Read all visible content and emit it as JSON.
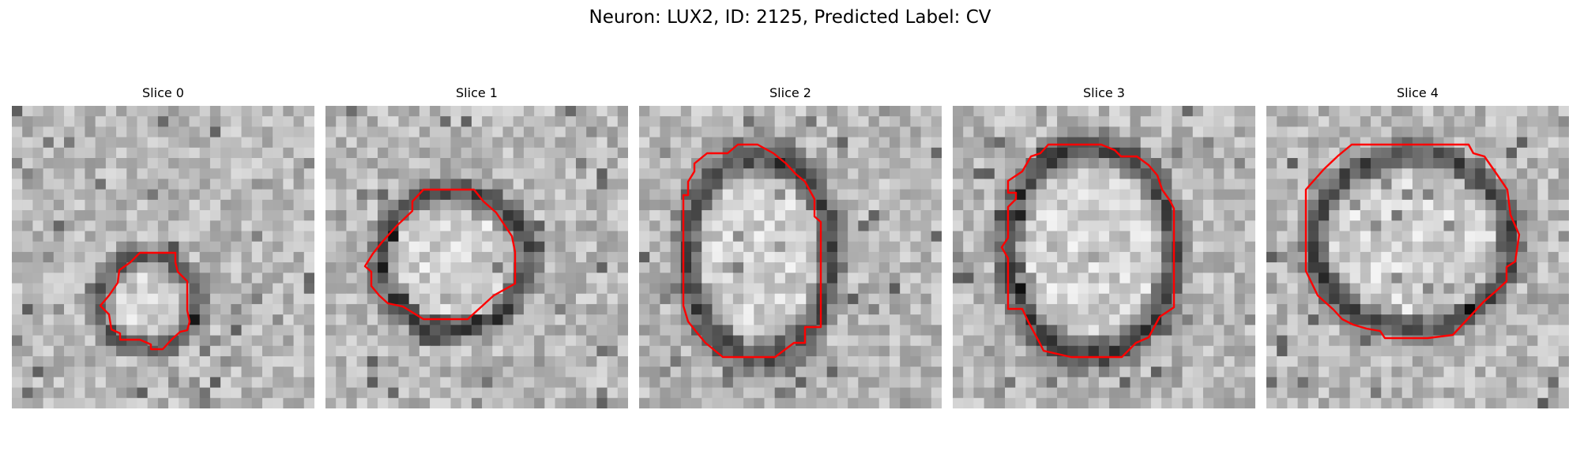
{
  "figure": {
    "title": "Neuron: LUX2, ID: 2125, Predicted Label: CV",
    "contour_color": "#ff0000",
    "colormap": "gray"
  },
  "slices": [
    {
      "title": "Slice 0"
    },
    {
      "title": "Slice 1"
    },
    {
      "title": "Slice 2"
    },
    {
      "title": "Slice 3"
    },
    {
      "title": "Slice 4"
    }
  ]
}
